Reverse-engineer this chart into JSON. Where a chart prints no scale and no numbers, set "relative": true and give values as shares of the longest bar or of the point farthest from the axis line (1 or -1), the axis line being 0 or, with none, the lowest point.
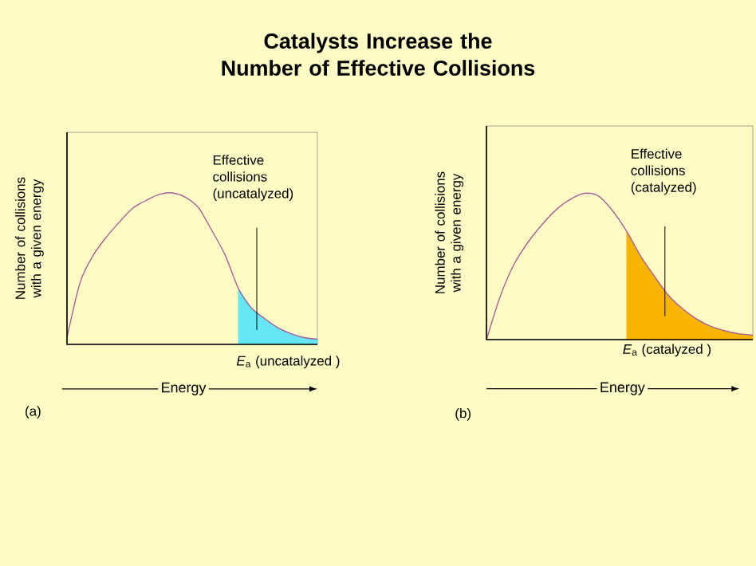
{
  "chart_data": [
    {
      "type": "line",
      "title": "Catalysts Increase the Number of Effective Collisions",
      "xlabel": "Energy",
      "ylabel": "Number of collisions with a given energy",
      "relative": true,
      "categories": [
        null,
        null,
        null,
        null,
        null,
        null,
        null,
        null,
        null,
        null,
        null,
        null,
        null,
        null,
        null,
        null,
        null,
        null,
        null,
        null
      ],
      "series": [
        {
          "color": "#a8609c",
          "values": [
            0.045,
            0.41,
            0.59,
            0.71,
            0.81,
            0.9,
            0.95,
            0.99,
            1.0,
            0.97,
            0.9,
            0.75,
            0.59,
            0.37,
            0.24,
            0.17,
            0.11,
            0.07,
            0.045,
            0.035
          ]
        },
        {
          "type": "area",
          "color": "#66e6f2",
          "values": [
            null,
            null,
            null,
            null,
            null,
            null,
            null,
            null,
            null,
            null,
            null,
            null,
            null,
            0.37,
            0.24,
            0.17,
            0.11,
            0.07,
            0.045,
            0.035
          ]
        }
      ],
      "annotations": [
        "*E*$_{a}$ (uncatalyzed )",
        "Effective collisions (uncatalyzed)",
        "(a)"
      ]
    },
    {
      "type": "line",
      "xlabel": "Energy",
      "ylabel": "Number of collisions with a given energy",
      "relative": true,
      "categories": [
        null,
        null,
        null,
        null,
        null,
        null,
        null,
        null,
        null,
        null,
        null,
        null,
        null,
        null,
        null,
        null,
        null,
        null,
        null,
        null
      ],
      "series": [
        {
          "color": "#a8609c",
          "values": [
            0.0,
            0.3,
            0.52,
            0.67,
            0.79,
            0.89,
            0.96,
            1.0,
            0.98,
            0.88,
            0.74,
            0.57,
            0.43,
            0.3,
            0.21,
            0.14,
            0.09,
            0.06,
            0.04,
            0.03
          ]
        },
        {
          "type": "area",
          "color": "#f7b500",
          "values": [
            null,
            null,
            null,
            null,
            null,
            null,
            null,
            null,
            null,
            null,
            0.74,
            0.57,
            0.43,
            0.3,
            0.21,
            0.14,
            0.09,
            0.06,
            0.04,
            0.03
          ]
        }
      ],
      "annotations": [
        "*E*$_{a}$ (catalyzed )",
        "Effective collisions (catalyzed)",
        "(b)"
      ]
    }
  ]
}
